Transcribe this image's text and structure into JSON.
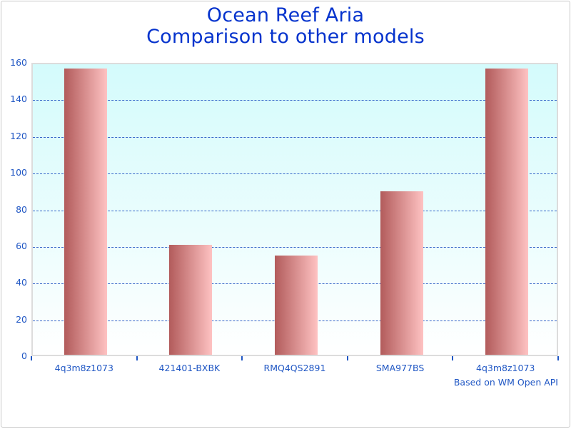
{
  "title": {
    "line1": "Ocean Reef Aria",
    "line2": "Comparison to other models"
  },
  "footer": "Based on WM Open API",
  "colors": {
    "title_text": "#0533cd",
    "axis_text": "#2057c4",
    "gridline": "#3565c8",
    "bar_gradient_left": "#b25b5b",
    "bar_gradient_right": "#fec2c2",
    "plot_bg_top": "#d4fbfc",
    "plot_bg_bottom": "#ffffff",
    "plot_border": "#dcdcdc",
    "frame_border": "#c9c9c9"
  },
  "chart_data": {
    "type": "bar",
    "title": "Ocean Reef Aria Comparison to other models",
    "categories": [
      "4q3m8z1073",
      "421401-BXBK",
      "RMQ4QS2891",
      "SMA977BS",
      "4q3m8z1073"
    ],
    "values": [
      156,
      60,
      54,
      89,
      156
    ],
    "xlabel": "",
    "ylabel": "",
    "ylim": [
      0,
      160
    ],
    "y_ticks": [
      0,
      20,
      40,
      60,
      80,
      100,
      120,
      140,
      160
    ],
    "gridline_values": [
      20,
      40,
      60,
      80,
      100,
      120,
      140
    ],
    "grid": "dashed-horizontal",
    "legend": "none",
    "annotation": "Based on WM Open API"
  }
}
